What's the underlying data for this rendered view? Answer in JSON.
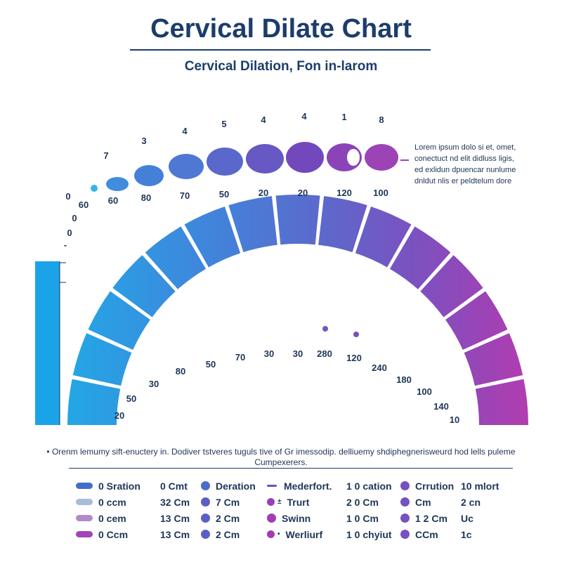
{
  "header": {
    "title": "Cervical Dilate Chart",
    "subtitle": "Cervical Dilation, Fon in-larom"
  },
  "side_note": {
    "lines": [
      "Lorem ipsum dolo si et, omet,",
      "conectuct nd elit didluss ligis,",
      "ed exlidun dpuencar nunlume",
      "dnldut nlis er peldtelum dore"
    ]
  },
  "footnote": {
    "line1": "• Orenm lemumy sift-enuctery in. Dodiver tstveres tuguls tive of Gr imessodip. delliuemy shdiphegnerisweurd hod lells puleme",
    "line2": "Cumpexerers."
  },
  "chart_data": [
    {
      "type": "scatter",
      "title": "",
      "top_labels": [
        "7",
        "3",
        "4",
        "5",
        "4",
        "4",
        "1",
        "8"
      ],
      "bottom_labels": [
        "60",
        "60",
        "80",
        "70",
        "50",
        "20",
        "20",
        "120",
        "100"
      ],
      "left_labels": [
        "0",
        "0",
        "0",
        "-"
      ],
      "circle_sizes": [
        1,
        2,
        3,
        4,
        5,
        6,
        7,
        8,
        9,
        10
      ],
      "colors": [
        "#33b5e8",
        "#3f8ddc",
        "#4e78d4",
        "#5a68cc",
        "#6659c4",
        "#7248bc",
        "#8a44b8",
        "#9c44b6"
      ]
    },
    {
      "type": "bar",
      "title": "",
      "outer_labels": [
        "20",
        "50",
        "30",
        "80",
        "50",
        "70",
        "30",
        "30",
        "280",
        "120",
        "240",
        "180",
        "100",
        "140",
        "10"
      ],
      "segments": 15,
      "gradient": [
        "#22a8e6",
        "#3f86dc",
        "#5b6acc",
        "#7a52c0",
        "#9a44b6",
        "#b23db0"
      ],
      "left_bar_color": "#1aa3e8"
    }
  ],
  "legend": {
    "rows": [
      [
        {
          "kind": "pill",
          "color": "#3f6fc9",
          "text": "0 Sration"
        },
        {
          "kind": "none",
          "text": "0 Cmt"
        },
        {
          "kind": "dot",
          "color": "#4a6ccb",
          "text": "Deration"
        },
        {
          "kind": "dash",
          "color": "#6a4fbf",
          "text": "Mederfort."
        },
        {
          "kind": "none",
          "text": "1 0 cation"
        },
        {
          "kind": "dot",
          "color": "#7552bd",
          "text": "Crrution"
        },
        {
          "kind": "none",
          "text": "10 mlort"
        }
      ],
      [
        {
          "kind": "pill",
          "color": "#a8bcd8",
          "text": "0 ccm"
        },
        {
          "kind": "none",
          "text": "32 Cm"
        },
        {
          "kind": "dot",
          "color": "#5a5fc6",
          "text": "7 Cm"
        },
        {
          "kind": "dot-marker",
          "color": "#9a3fb5",
          "marker": "±",
          "text": "Trurt"
        },
        {
          "kind": "none",
          "text": "2 0 Cm"
        },
        {
          "kind": "dot",
          "color": "#7552bd",
          "text": "Cm"
        },
        {
          "kind": "none",
          "text": "2 cn"
        }
      ],
      [
        {
          "kind": "pill",
          "color": "#b28ac9",
          "text": "0 cem"
        },
        {
          "kind": "none",
          "text": "13 Cm"
        },
        {
          "kind": "dot",
          "color": "#5a5fc6",
          "text": "2 Cm"
        },
        {
          "kind": "dot",
          "color": "#a23db3",
          "text": "Swinn"
        },
        {
          "kind": "none",
          "text": "1 0 Cm"
        },
        {
          "kind": "dot",
          "color": "#7552bd",
          "text": "1 2 Cm"
        },
        {
          "kind": "none",
          "text": "Uc"
        }
      ],
      [
        {
          "kind": "pill",
          "color": "#a044b8",
          "text": "0 Ccm"
        },
        {
          "kind": "none",
          "text": "13 Cm"
        },
        {
          "kind": "dot",
          "color": "#5a5fc6",
          "text": "2 Cm"
        },
        {
          "kind": "dot-marker",
          "color": "#a23db3",
          "marker": "•",
          "text": "Werliurf"
        },
        {
          "kind": "none",
          "text": "1 0 chyiut"
        },
        {
          "kind": "dot",
          "color": "#7552bd",
          "text": "CCm"
        },
        {
          "kind": "none",
          "text": "1c"
        }
      ]
    ]
  }
}
